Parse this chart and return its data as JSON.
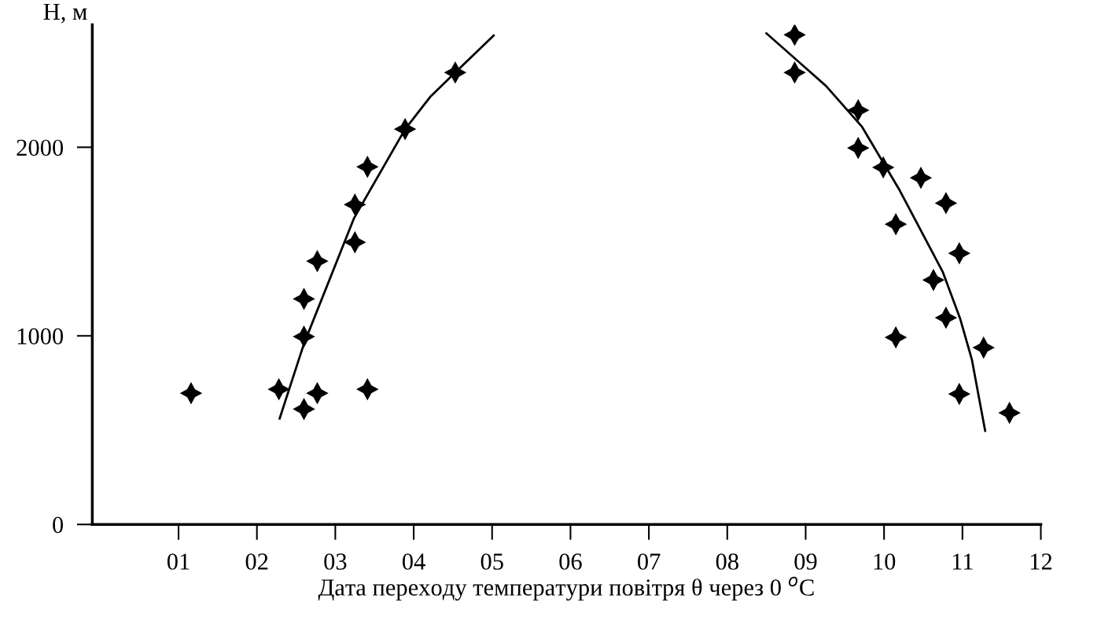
{
  "chart_data": {
    "type": "scatter",
    "ylabel": "H, м",
    "xlabel": "Дата переходу температури повітря θ через 0 $^{o}$C",
    "xlim": [
      -0.1,
      12
    ],
    "ylim": [
      0,
      2650
    ],
    "xticks": [
      {
        "value": 1,
        "label": "01"
      },
      {
        "value": 2,
        "label": "02"
      },
      {
        "value": 3,
        "label": "03"
      },
      {
        "value": 4,
        "label": "04"
      },
      {
        "value": 5,
        "label": "05"
      },
      {
        "value": 6,
        "label": "06"
      },
      {
        "value": 7,
        "label": "07"
      },
      {
        "value": 8,
        "label": "08"
      },
      {
        "value": 9,
        "label": "09"
      },
      {
        "value": 10,
        "label": "10"
      },
      {
        "value": 11,
        "label": "11"
      },
      {
        "value": 12,
        "label": "12"
      }
    ],
    "yticks": [
      0,
      1000,
      2000
    ],
    "grid": false,
    "legend": false,
    "marker": "star",
    "series": [
      {
        "color": "#000000",
        "x": [
          1.16,
          2.28,
          2.6,
          2.77,
          3.41,
          2.6,
          2.6,
          2.77,
          3.25,
          3.25,
          3.41,
          3.89,
          4.53
        ],
        "values": [
          696,
          717,
          612,
          696,
          717,
          996,
          1196,
          1396,
          1496,
          1696,
          1896,
          2096,
          2396
        ]
      },
      {
        "color": "#000000",
        "x": [
          8.86,
          8.86,
          9.67,
          9.67,
          9.99,
          10.47,
          10.79,
          10.15,
          10.96,
          10.63,
          10.79,
          10.15,
          11.27,
          10.96,
          11.6
        ],
        "values": [
          2596,
          2396,
          2196,
          1996,
          1893,
          1838,
          1704,
          1592,
          1438,
          1296,
          1096,
          992,
          938,
          692,
          592
        ]
      },
      {
        "type": "line",
        "color": "#000000",
        "marker": "none",
        "x": [
          2.29,
          2.6,
          3.24,
          3.89,
          4.21,
          4.53,
          5.02
        ],
        "values": [
          562,
          958,
          1625,
          2096,
          2267,
          2396,
          2592
        ]
      },
      {
        "type": "line",
        "color": "#000000",
        "marker": "none",
        "x": [
          8.5,
          9.26,
          9.72,
          10.2,
          10.75,
          10.97,
          11.12,
          11.29
        ],
        "values": [
          2604,
          2325,
          2108,
          1771,
          1338,
          1092,
          875,
          496
        ]
      }
    ]
  }
}
